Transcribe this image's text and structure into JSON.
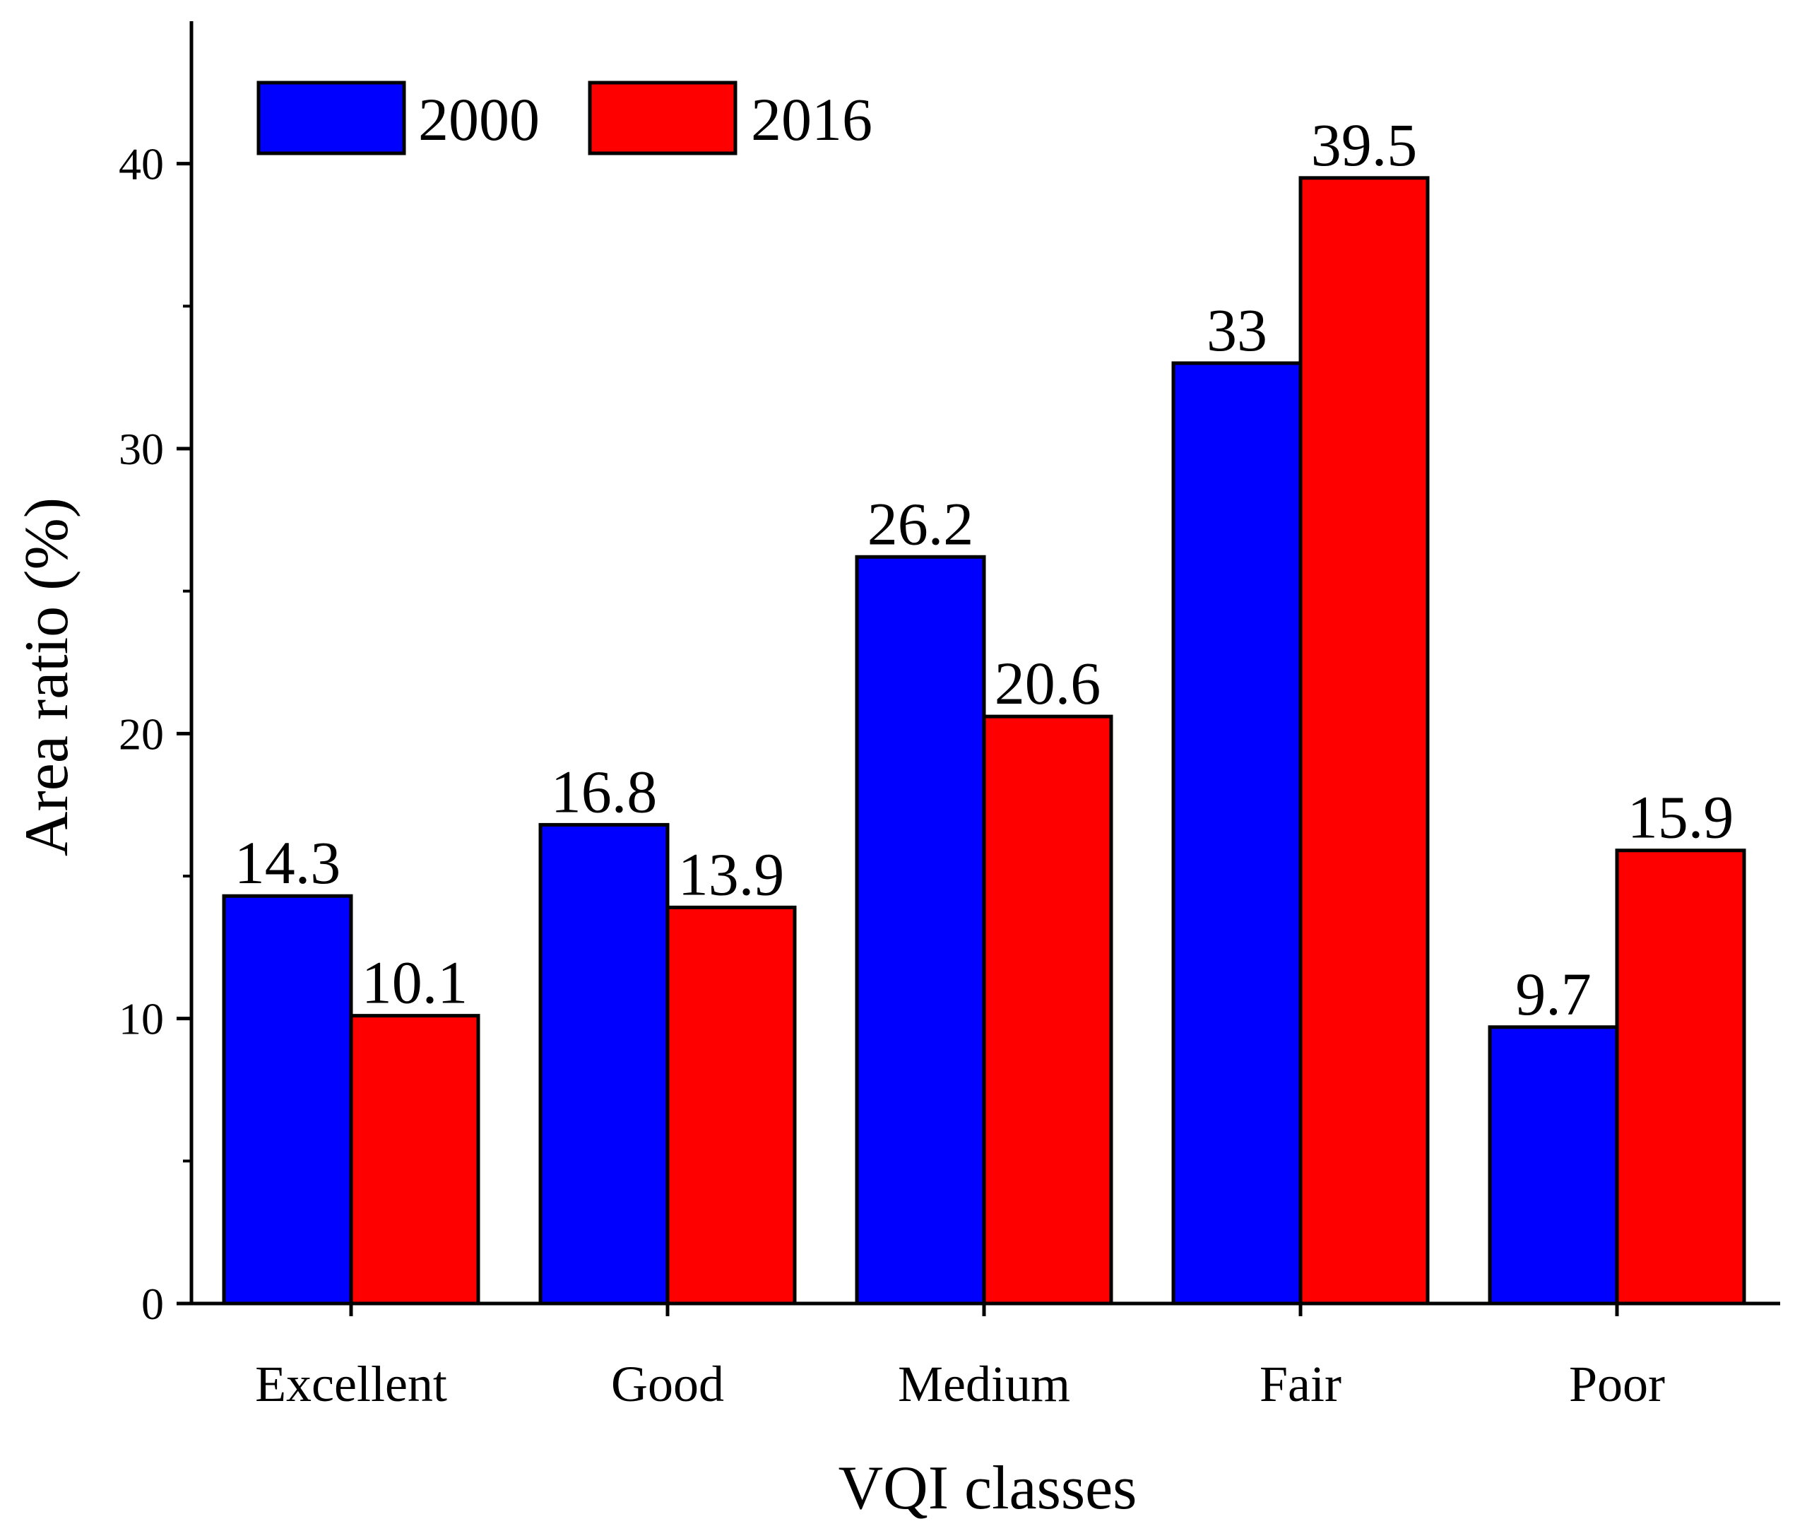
{
  "chart_data": {
    "type": "bar",
    "title": "",
    "xlabel": "VQI classes",
    "ylabel": "Area ratio (%)",
    "ylim": [
      0,
      45
    ],
    "yticks": [
      0,
      10,
      20,
      30,
      40
    ],
    "categories": [
      "Excellent",
      "Good",
      "Medium",
      "Fair",
      "Poor"
    ],
    "series": [
      {
        "name": "2000",
        "color": "#0000ff",
        "values": [
          14.3,
          16.8,
          26.2,
          33,
          9.7
        ],
        "labels": [
          "14.3",
          "16.8",
          "26.2",
          "33",
          "9.7"
        ]
      },
      {
        "name": "2016",
        "color": "#ff0000",
        "values": [
          10.1,
          13.9,
          20.6,
          39.5,
          15.9
        ],
        "labels": [
          "10.1",
          "13.9",
          "20.6",
          "39.5",
          "15.9"
        ]
      }
    ],
    "legend_position": "top-left",
    "grid": false
  }
}
